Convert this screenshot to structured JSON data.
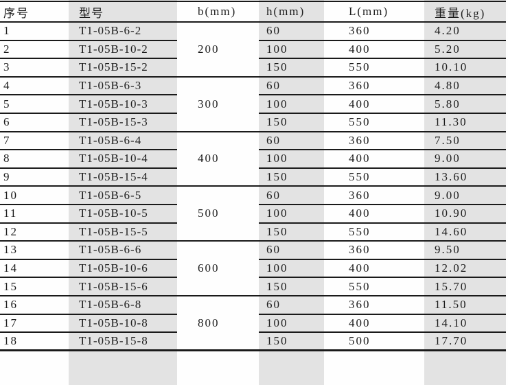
{
  "colors": {
    "band": "#e3e3e3",
    "line": "#1a1a1a",
    "text": "#1c1c1c",
    "background": "#fefefe"
  },
  "table": {
    "header": {
      "no": "序号",
      "model": "型号",
      "b": "b(mm)",
      "h": "h(mm)",
      "L": "L(mm)",
      "weight": "重量(kg)"
    },
    "groups": [
      {
        "b": "200",
        "rows": [
          {
            "no": "1",
            "model": "T1-05B-6-2",
            "h": "60",
            "L": "360",
            "weight": "4.20"
          },
          {
            "no": "2",
            "model": "T1-05B-10-2",
            "h": "100",
            "L": "400",
            "weight": "5.20"
          },
          {
            "no": "3",
            "model": "T1-05B-15-2",
            "h": "150",
            "L": "550",
            "weight": "10.10"
          }
        ]
      },
      {
        "b": "300",
        "rows": [
          {
            "no": "4",
            "model": "T1-05B-6-3",
            "h": "60",
            "L": "360",
            "weight": "4.80"
          },
          {
            "no": "5",
            "model": "T1-05B-10-3",
            "h": "100",
            "L": "400",
            "weight": "5.80"
          },
          {
            "no": "6",
            "model": "T1-05B-15-3",
            "h": "150",
            "L": "550",
            "weight": "11.30"
          }
        ]
      },
      {
        "b": "400",
        "rows": [
          {
            "no": "7",
            "model": "T1-05B-6-4",
            "h": "60",
            "L": "360",
            "weight": "7.50"
          },
          {
            "no": "8",
            "model": "T1-05B-10-4",
            "h": "100",
            "L": "400",
            "weight": "9.00"
          },
          {
            "no": "9",
            "model": "T1-05B-15-4",
            "h": "150",
            "L": "550",
            "weight": "13.60"
          }
        ]
      },
      {
        "b": "500",
        "rows": [
          {
            "no": "10",
            "model": "T1-05B-6-5",
            "h": "60",
            "L": "360",
            "weight": "9.00"
          },
          {
            "no": "11",
            "model": "T1-05B-10-5",
            "h": "100",
            "L": "400",
            "weight": "10.90"
          },
          {
            "no": "12",
            "model": "T1-05B-15-5",
            "h": "150",
            "L": "550",
            "weight": "14.60"
          }
        ]
      },
      {
        "b": "600",
        "rows": [
          {
            "no": "13",
            "model": "T1-05B-6-6",
            "h": "60",
            "L": "360",
            "weight": "9.50"
          },
          {
            "no": "14",
            "model": "T1-05B-10-6",
            "h": "100",
            "L": "400",
            "weight": "12.02"
          },
          {
            "no": "15",
            "model": "T1-05B-15-6",
            "h": "150",
            "L": "550",
            "weight": "15.70"
          }
        ]
      },
      {
        "b": "800",
        "rows": [
          {
            "no": "16",
            "model": "T1-05B-6-8",
            "h": "60",
            "L": "360",
            "weight": "11.50"
          },
          {
            "no": "17",
            "model": "T1-05B-10-8",
            "h": "100",
            "L": "400",
            "weight": "14.10"
          },
          {
            "no": "18",
            "model": "T1-05B-15-8",
            "h": "150",
            "L": "500",
            "weight": "17.70"
          }
        ]
      }
    ]
  }
}
